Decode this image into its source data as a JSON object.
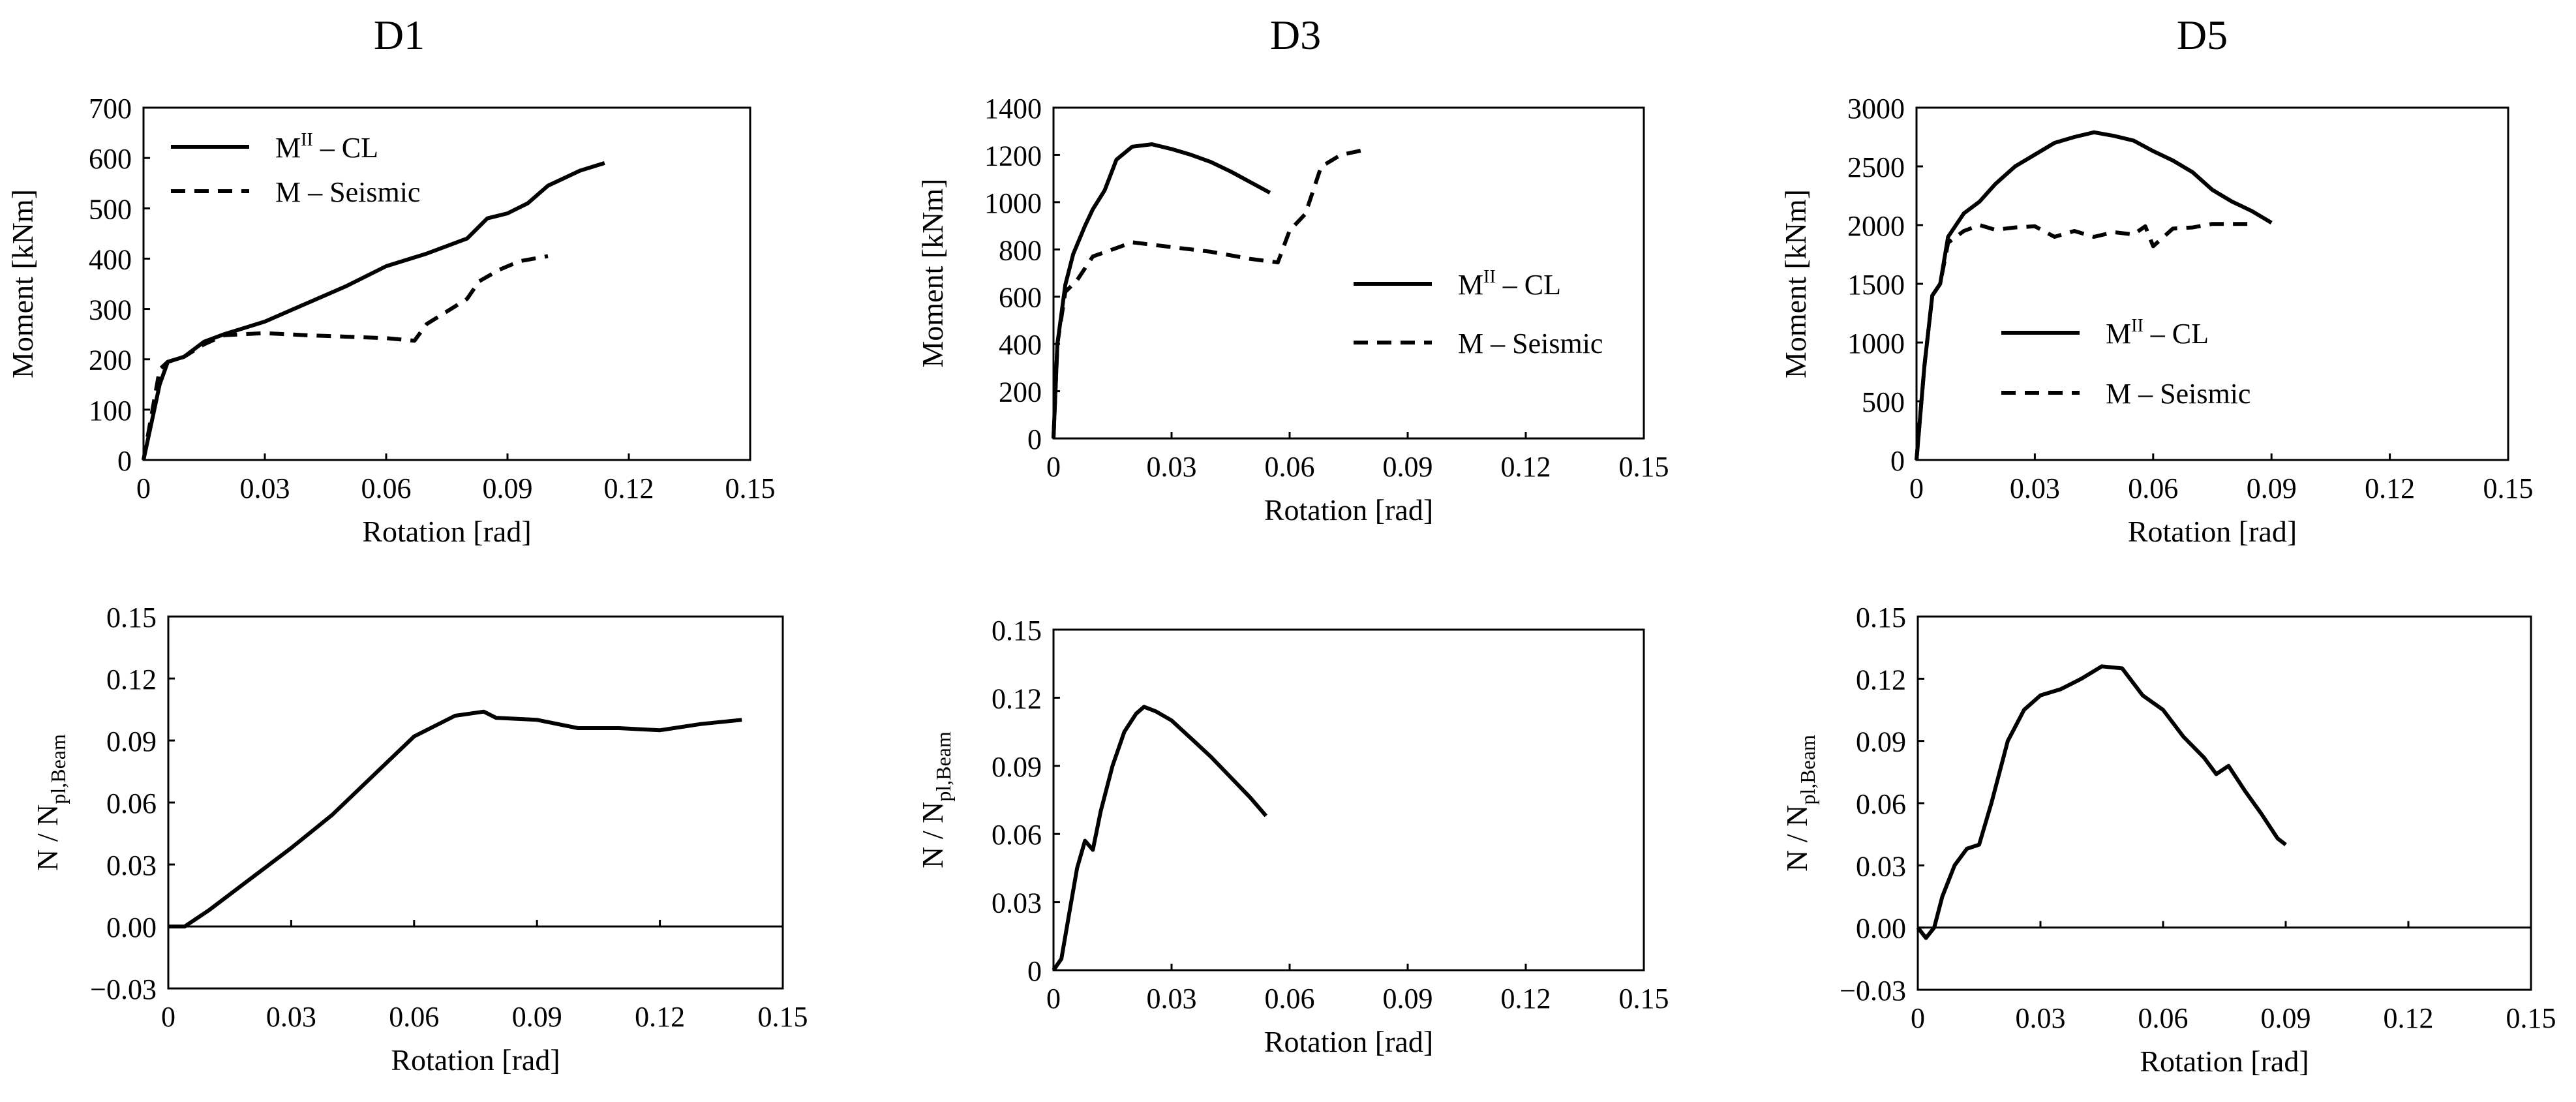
{
  "figure": {
    "columns": [
      "D1",
      "D3",
      "D5"
    ]
  },
  "chart_data": [
    {
      "id": "D1-moment",
      "type": "line",
      "title": "D1",
      "xlabel": "Rotation [rad]",
      "ylabel": "Moment [kNm]",
      "xlim": [
        0,
        0.15
      ],
      "ylim": [
        0,
        700
      ],
      "xticks": [
        "0",
        "0.03",
        "0.06",
        "0.09",
        "0.12",
        "0.15"
      ],
      "yticks": [
        "0",
        "100",
        "200",
        "300",
        "400",
        "500",
        "600",
        "700"
      ],
      "legend": "top-left",
      "series": [
        {
          "name": "M^II – CL",
          "label_main": "M",
          "label_sup": "II",
          "label_rest": " – CL",
          "style": "solid",
          "points": [
            [
              0,
              0
            ],
            [
              0.004,
              150
            ],
            [
              0.006,
              195
            ],
            [
              0.01,
              205
            ],
            [
              0.015,
              235
            ],
            [
              0.02,
              250
            ],
            [
              0.03,
              275
            ],
            [
              0.04,
              310
            ],
            [
              0.05,
              345
            ],
            [
              0.06,
              385
            ],
            [
              0.07,
              410
            ],
            [
              0.08,
              440
            ],
            [
              0.085,
              480
            ],
            [
              0.09,
              490
            ],
            [
              0.095,
              510
            ],
            [
              0.1,
              545
            ],
            [
              0.108,
              575
            ],
            [
              0.114,
              590
            ]
          ]
        },
        {
          "name": "M – Seismic",
          "label_main": "M – Seismic",
          "label_sup": "",
          "label_rest": "",
          "style": "dashed",
          "points": [
            [
              0,
              0
            ],
            [
              0.004,
              180
            ],
            [
              0.006,
              195
            ],
            [
              0.01,
              205
            ],
            [
              0.015,
              230
            ],
            [
              0.02,
              248
            ],
            [
              0.03,
              252
            ],
            [
              0.04,
              248
            ],
            [
              0.05,
              245
            ],
            [
              0.06,
              242
            ],
            [
              0.067,
              237
            ],
            [
              0.07,
              270
            ],
            [
              0.075,
              295
            ],
            [
              0.08,
              320
            ],
            [
              0.083,
              355
            ],
            [
              0.088,
              378
            ],
            [
              0.093,
              395
            ],
            [
              0.1,
              405
            ]
          ]
        }
      ]
    },
    {
      "id": "D3-moment",
      "type": "line",
      "title": "D3",
      "xlabel": "Rotation [rad]",
      "ylabel": "Moment [kNm]",
      "xlim": [
        0,
        0.15
      ],
      "ylim": [
        0,
        1400
      ],
      "xticks": [
        "0",
        "0.03",
        "0.06",
        "0.09",
        "0.12",
        "0.15"
      ],
      "yticks": [
        "0",
        "200",
        "400",
        "600",
        "800",
        "1000",
        "1200",
        "1400"
      ],
      "legend": "right",
      "series": [
        {
          "name": "M^II – CL",
          "label_main": "M",
          "label_sup": "II",
          "label_rest": " – CL",
          "style": "solid",
          "points": [
            [
              0,
              0
            ],
            [
              0.001,
              400
            ],
            [
              0.003,
              650
            ],
            [
              0.005,
              780
            ],
            [
              0.008,
              900
            ],
            [
              0.01,
              970
            ],
            [
              0.013,
              1050
            ],
            [
              0.016,
              1180
            ],
            [
              0.02,
              1235
            ],
            [
              0.025,
              1245
            ],
            [
              0.03,
              1225
            ],
            [
              0.035,
              1200
            ],
            [
              0.04,
              1170
            ],
            [
              0.045,
              1130
            ],
            [
              0.05,
              1085
            ],
            [
              0.055,
              1040
            ]
          ]
        },
        {
          "name": "M – Seismic",
          "label_main": "M – Seismic",
          "label_sup": "",
          "label_rest": "",
          "style": "dashed",
          "points": [
            [
              0,
              0
            ],
            [
              0.001,
              400
            ],
            [
              0.003,
              620
            ],
            [
              0.006,
              670
            ],
            [
              0.01,
              770
            ],
            [
              0.015,
              800
            ],
            [
              0.02,
              830
            ],
            [
              0.03,
              810
            ],
            [
              0.04,
              790
            ],
            [
              0.05,
              760
            ],
            [
              0.057,
              745
            ],
            [
              0.06,
              880
            ],
            [
              0.064,
              950
            ],
            [
              0.068,
              1150
            ],
            [
              0.073,
              1200
            ],
            [
              0.08,
              1225
            ]
          ]
        }
      ]
    },
    {
      "id": "D5-moment",
      "type": "line",
      "title": "D5",
      "xlabel": "Rotation [rad]",
      "ylabel": "Moment [kNm]",
      "xlim": [
        0,
        0.15
      ],
      "ylim": [
        0,
        3000
      ],
      "xticks": [
        "0",
        "0.03",
        "0.06",
        "0.09",
        "0.12",
        "0.15"
      ],
      "yticks": [
        "0",
        "500",
        "1000",
        "1500",
        "2000",
        "2500",
        "3000"
      ],
      "legend": "bottom-left",
      "series": [
        {
          "name": "M^II – CL",
          "label_main": "M",
          "label_sup": "II",
          "label_rest": " – CL",
          "style": "solid",
          "points": [
            [
              0,
              0
            ],
            [
              0.002,
              800
            ],
            [
              0.004,
              1400
            ],
            [
              0.006,
              1500
            ],
            [
              0.008,
              1900
            ],
            [
              0.012,
              2100
            ],
            [
              0.016,
              2200
            ],
            [
              0.02,
              2350
            ],
            [
              0.025,
              2500
            ],
            [
              0.03,
              2600
            ],
            [
              0.035,
              2700
            ],
            [
              0.04,
              2750
            ],
            [
              0.045,
              2790
            ],
            [
              0.05,
              2760
            ],
            [
              0.055,
              2720
            ],
            [
              0.06,
              2630
            ],
            [
              0.065,
              2550
            ],
            [
              0.07,
              2450
            ],
            [
              0.075,
              2300
            ],
            [
              0.08,
              2200
            ],
            [
              0.085,
              2120
            ],
            [
              0.09,
              2020
            ]
          ]
        },
        {
          "name": "M – Seismic",
          "label_main": "M – Seismic",
          "label_sup": "",
          "label_rest": "",
          "style": "dashed",
          "points": [
            [
              0,
              0
            ],
            [
              0.002,
              800
            ],
            [
              0.004,
              1400
            ],
            [
              0.006,
              1500
            ],
            [
              0.008,
              1850
            ],
            [
              0.012,
              1950
            ],
            [
              0.016,
              2000
            ],
            [
              0.02,
              1960
            ],
            [
              0.025,
              1980
            ],
            [
              0.03,
              1990
            ],
            [
              0.035,
              1900
            ],
            [
              0.04,
              1950
            ],
            [
              0.045,
              1900
            ],
            [
              0.05,
              1940
            ],
            [
              0.055,
              1920
            ],
            [
              0.058,
              1990
            ],
            [
              0.06,
              1820
            ],
            [
              0.065,
              1970
            ],
            [
              0.07,
              1980
            ],
            [
              0.075,
              2010
            ],
            [
              0.085,
              2010
            ]
          ]
        }
      ]
    },
    {
      "id": "D1-axial",
      "type": "line",
      "xlabel": "Rotation [rad]",
      "ylabel_main": "N / N",
      "ylabel_sub": "pl,Beam",
      "xlim": [
        0,
        0.15
      ],
      "ylim": [
        -0.03,
        0.15
      ],
      "xticks": [
        "0",
        "0.03",
        "0.06",
        "0.09",
        "0.12",
        "0.15"
      ],
      "yticks": [
        "−0.03",
        "0.00",
        "0.03",
        "0.06",
        "0.09",
        "0.12",
        "0.15"
      ],
      "series": [
        {
          "name": "N/Npl,Beam",
          "style": "solid",
          "points": [
            [
              0,
              0
            ],
            [
              0.004,
              0
            ],
            [
              0.01,
              0.008
            ],
            [
              0.02,
              0.023
            ],
            [
              0.03,
              0.038
            ],
            [
              0.04,
              0.054
            ],
            [
              0.05,
              0.073
            ],
            [
              0.06,
              0.092
            ],
            [
              0.07,
              0.102
            ],
            [
              0.077,
              0.104
            ],
            [
              0.08,
              0.101
            ],
            [
              0.09,
              0.1
            ],
            [
              0.1,
              0.096
            ],
            [
              0.11,
              0.096
            ],
            [
              0.12,
              0.095
            ],
            [
              0.13,
              0.098
            ],
            [
              0.14,
              0.1
            ]
          ]
        }
      ]
    },
    {
      "id": "D3-axial",
      "type": "line",
      "xlabel": "Rotation [rad]",
      "ylabel_main": "N / N",
      "ylabel_sub": "pl,Beam",
      "xlim": [
        0,
        0.15
      ],
      "ylim": [
        0,
        0.15
      ],
      "xticks": [
        "0",
        "0.03",
        "0.06",
        "0.09",
        "0.12",
        "0.15"
      ],
      "yticks": [
        "0",
        "0.03",
        "0.06",
        "0.09",
        "0.12",
        "0.15"
      ],
      "series": [
        {
          "name": "N/Npl,Beam",
          "style": "solid",
          "points": [
            [
              0,
              0
            ],
            [
              0.002,
              0.005
            ],
            [
              0.004,
              0.025
            ],
            [
              0.006,
              0.045
            ],
            [
              0.008,
              0.057
            ],
            [
              0.01,
              0.053
            ],
            [
              0.012,
              0.07
            ],
            [
              0.015,
              0.09
            ],
            [
              0.018,
              0.105
            ],
            [
              0.021,
              0.113
            ],
            [
              0.023,
              0.116
            ],
            [
              0.026,
              0.114
            ],
            [
              0.03,
              0.11
            ],
            [
              0.035,
              0.102
            ],
            [
              0.04,
              0.094
            ],
            [
              0.045,
              0.085
            ],
            [
              0.05,
              0.076
            ],
            [
              0.054,
              0.068
            ]
          ]
        }
      ]
    },
    {
      "id": "D5-axial",
      "type": "line",
      "xlabel": "Rotation [rad]",
      "ylabel_main": "N / N",
      "ylabel_sub": "pl,Beam",
      "xlim": [
        0,
        0.15
      ],
      "ylim": [
        -0.03,
        0.15
      ],
      "xticks": [
        "0",
        "0.03",
        "0.06",
        "0.09",
        "0.12",
        "0.15"
      ],
      "yticks": [
        "−0.03",
        "0.00",
        "0.03",
        "0.06",
        "0.09",
        "0.12",
        "0.15"
      ],
      "series": [
        {
          "name": "N/Npl,Beam",
          "style": "solid",
          "points": [
            [
              0,
              0
            ],
            [
              0.002,
              -0.005
            ],
            [
              0.004,
              0
            ],
            [
              0.006,
              0.015
            ],
            [
              0.009,
              0.03
            ],
            [
              0.012,
              0.038
            ],
            [
              0.015,
              0.04
            ],
            [
              0.018,
              0.06
            ],
            [
              0.022,
              0.09
            ],
            [
              0.026,
              0.105
            ],
            [
              0.03,
              0.112
            ],
            [
              0.035,
              0.115
            ],
            [
              0.04,
              0.12
            ],
            [
              0.045,
              0.126
            ],
            [
              0.05,
              0.125
            ],
            [
              0.055,
              0.112
            ],
            [
              0.06,
              0.105
            ],
            [
              0.065,
              0.092
            ],
            [
              0.07,
              0.082
            ],
            [
              0.073,
              0.074
            ],
            [
              0.076,
              0.078
            ],
            [
              0.08,
              0.066
            ],
            [
              0.084,
              0.055
            ],
            [
              0.088,
              0.043
            ],
            [
              0.09,
              0.04
            ]
          ]
        }
      ]
    }
  ]
}
